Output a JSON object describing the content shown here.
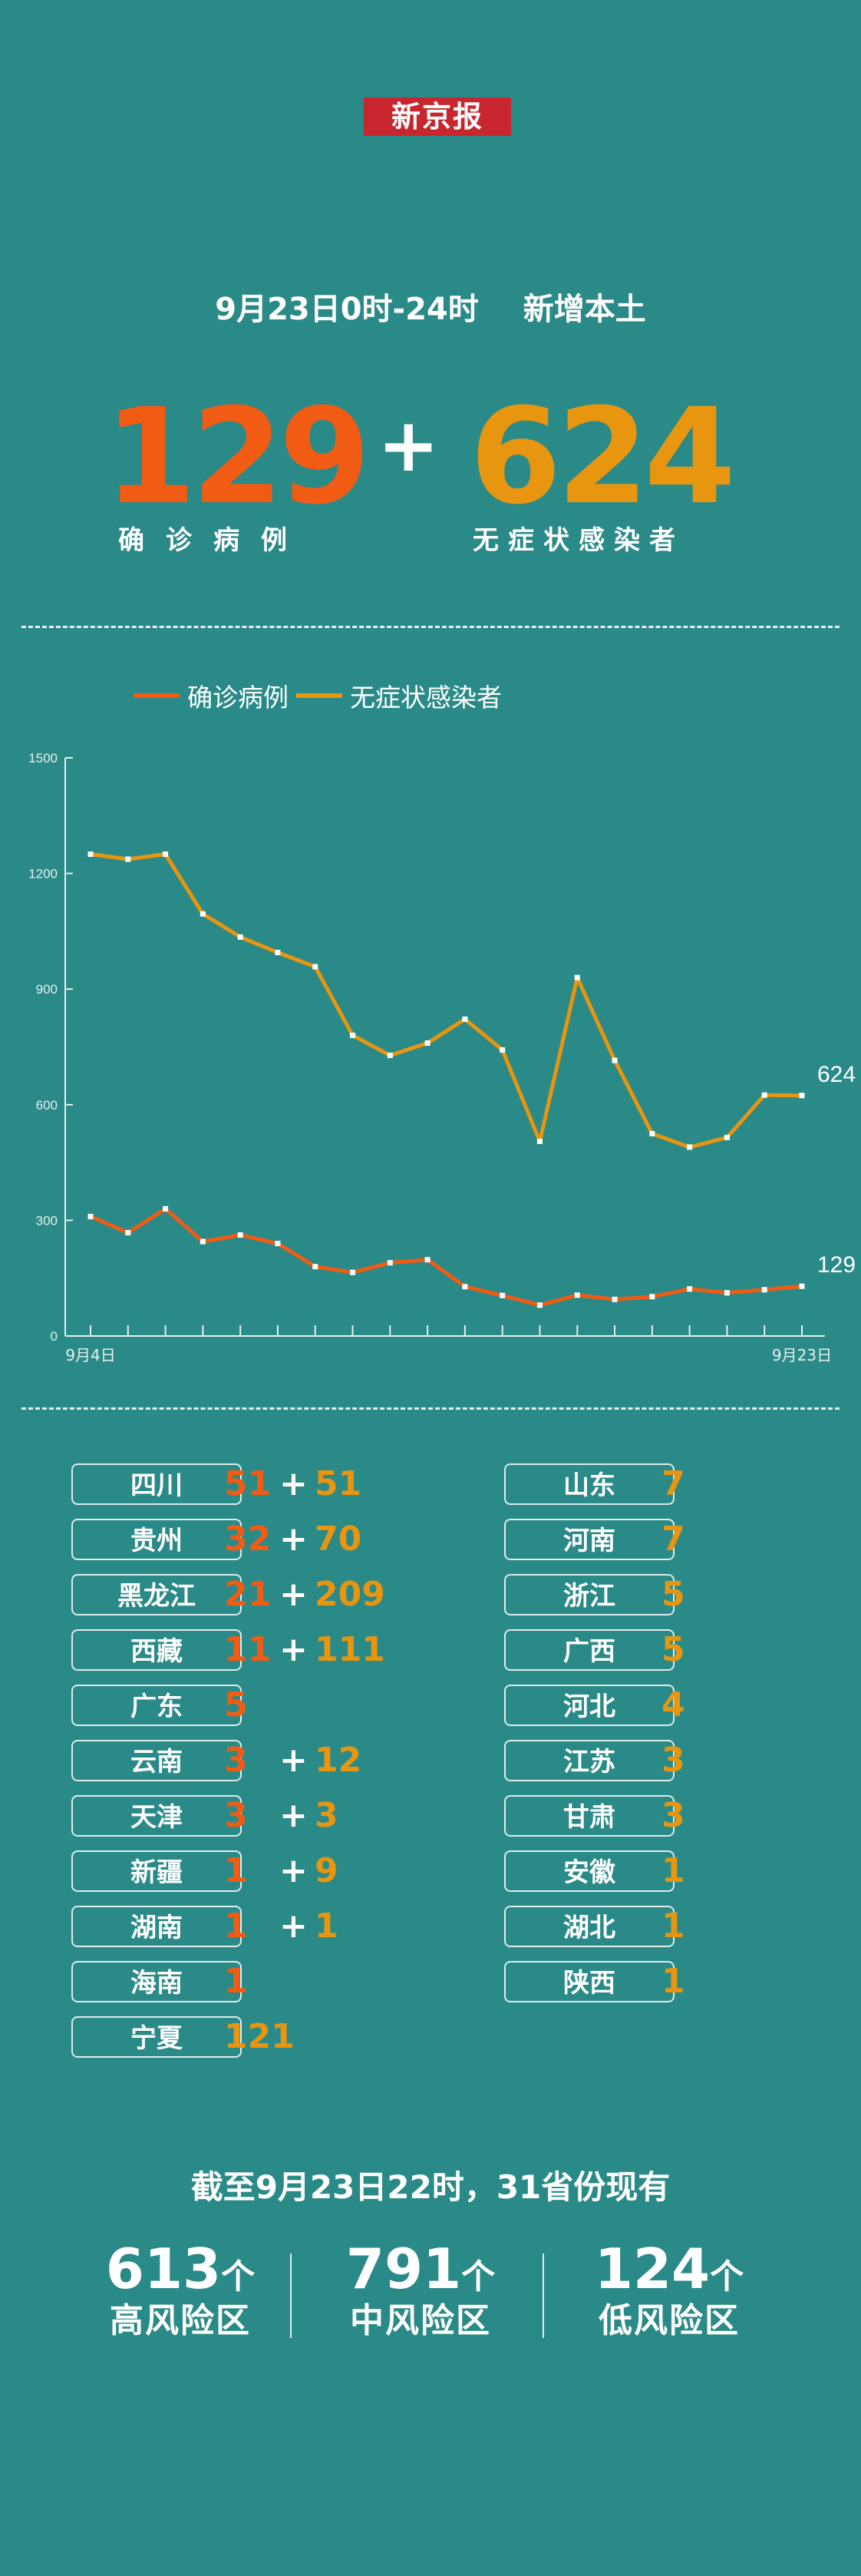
{
  "logo": "新京报",
  "header": {
    "date_range": "9月23日0时-24时",
    "scope": "新增本土"
  },
  "totals": {
    "confirmed": "129",
    "plus": "+",
    "asymptomatic": "624",
    "confirmed_label": "确诊病例",
    "asymptomatic_label": "无症状感染者"
  },
  "colors": {
    "confirmed": "#f15b13",
    "asymptomatic": "#e8950f",
    "background": "#2a8a88"
  },
  "chart_data": {
    "type": "line",
    "x_first_label": "9月4日",
    "x_last_label": "9月23日",
    "ylim": [
      0,
      1500
    ],
    "yticks": [
      0,
      300,
      600,
      900,
      1200,
      1500
    ],
    "legend_position": "top-left",
    "series": [
      {
        "name": "确诊病例",
        "color": "#f15b13",
        "values": [
          310,
          268,
          330,
          245,
          262,
          240,
          180,
          165,
          190,
          198,
          128,
          105,
          80,
          106,
          95,
          102,
          122,
          112,
          120,
          129
        ],
        "end_label": "129"
      },
      {
        "name": "无症状感染者",
        "color": "#e8950f",
        "values": [
          1250,
          1237,
          1250,
          1095,
          1035,
          995,
          958,
          780,
          728,
          760,
          822,
          742,
          505,
          930,
          715,
          525,
          490,
          515,
          625,
          624
        ],
        "end_label": "624"
      }
    ]
  },
  "provinces_left": [
    {
      "name": "四川",
      "c": "51",
      "a": "51"
    },
    {
      "name": "贵州",
      "c": "32",
      "a": "70"
    },
    {
      "name": "黑龙江",
      "c": "21",
      "a": "209"
    },
    {
      "name": "西藏",
      "c": "11",
      "a": "111"
    },
    {
      "name": "广东",
      "c": "5",
      "a": ""
    },
    {
      "name": "云南",
      "c": "3",
      "a": "12"
    },
    {
      "name": "天津",
      "c": "3",
      "a": "3"
    },
    {
      "name": "新疆",
      "c": "1",
      "a": "9"
    },
    {
      "name": "湖南",
      "c": "1",
      "a": "1"
    },
    {
      "name": "海南",
      "c": "1",
      "a": ""
    },
    {
      "name": "宁夏",
      "c": "",
      "a": "121"
    }
  ],
  "provinces_right": [
    {
      "name": "山东",
      "a": "7"
    },
    {
      "name": "河南",
      "a": "7"
    },
    {
      "name": "浙江",
      "a": "5"
    },
    {
      "name": "广西",
      "a": "5"
    },
    {
      "name": "河北",
      "a": "4"
    },
    {
      "name": "江苏",
      "a": "3"
    },
    {
      "name": "甘肃",
      "a": "3"
    },
    {
      "name": "安徽",
      "a": "1"
    },
    {
      "name": "湖北",
      "a": "1"
    },
    {
      "name": "陕西",
      "a": "1"
    }
  ],
  "footer": {
    "title": "截至9月23日22时，31省份现有",
    "risk": [
      {
        "num": "613",
        "unit": "个",
        "label": "高风险区"
      },
      {
        "num": "791",
        "unit": "个",
        "label": "中风险区"
      },
      {
        "num": "124",
        "unit": "个",
        "label": "低风险区"
      }
    ]
  }
}
